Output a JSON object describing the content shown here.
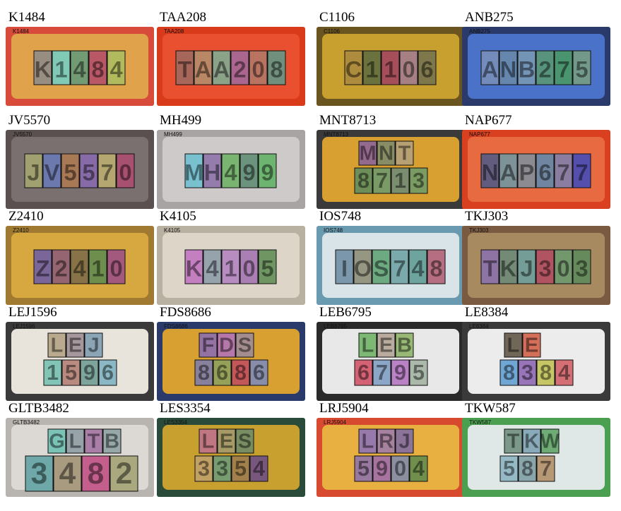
{
  "plates": [
    {
      "label": "K1484",
      "frame": "#d84a3a",
      "inner": "#e0a24a",
      "chars": [
        [
          "K",
          "#8a8a8a"
        ],
        [
          "1",
          "#6fd0c8"
        ],
        [
          "4",
          "#5f9a7a"
        ],
        [
          "8",
          "#b04a6a"
        ],
        [
          "4",
          "#a8c060"
        ]
      ],
      "layout": "single"
    },
    {
      "label": "TAA208",
      "frame": "#d93a1a",
      "inner": "#e85030",
      "chars": [
        [
          "T",
          "#9a6a60"
        ],
        [
          "A",
          "#b09070"
        ],
        [
          "A",
          "#7ab098"
        ],
        [
          "2",
          "#a06aa0"
        ],
        [
          "0",
          "#b07a6a"
        ],
        [
          "8",
          "#5a9a8a"
        ]
      ],
      "layout": "single"
    },
    {
      "label": "C1106",
      "frame": "#6a5420",
      "inner": "#c8a030",
      "chars": [
        [
          "C",
          "#a88a40"
        ],
        [
          "1",
          "#5a6a40"
        ],
        [
          "1",
          "#a04060"
        ],
        [
          "0",
          "#a07a90"
        ],
        [
          "6",
          "#707050"
        ]
      ],
      "layout": "single"
    },
    {
      "label": "ANB275",
      "frame": "#2a3a6a",
      "inner": "#4a72c8",
      "chars": [
        [
          "A",
          "#7a90b8"
        ],
        [
          "N",
          "#6a8aa8"
        ],
        [
          "B",
          "#7a9ab0"
        ],
        [
          "2",
          "#5a9a70"
        ],
        [
          "7",
          "#4a9a60"
        ],
        [
          "5",
          "#7aa080"
        ]
      ],
      "layout": "single"
    },
    {
      "label": "JV5570",
      "frame": "#5a5050",
      "inner": "#7a7070",
      "chars": [
        [
          "J",
          "#a8a870"
        ],
        [
          "V",
          "#6a7ab8"
        ],
        [
          "5",
          "#b07a50"
        ],
        [
          "5",
          "#8a6ab0"
        ],
        [
          "7",
          "#c0b070"
        ],
        [
          "0",
          "#b04a70"
        ]
      ],
      "layout": "single"
    },
    {
      "label": "MH499",
      "frame": "#a8a4a4",
      "inner": "#cfcaca",
      "chars": [
        [
          "M",
          "#6ac0d0"
        ],
        [
          "H",
          "#8a70a8"
        ],
        [
          "4",
          "#6ab060"
        ],
        [
          "9",
          "#5a8a70"
        ],
        [
          "9",
          "#5ab060"
        ]
      ],
      "layout": "single"
    },
    {
      "label": "MNT8713",
      "frame": "#3a3a3a",
      "inner": "#d8a030",
      "chars": [
        [
          "M",
          "#8a60a0"
        ],
        [
          "N",
          "#7a8a70"
        ],
        [
          "T",
          "#b0a080"
        ],
        [
          "8",
          "#5a8a60"
        ],
        [
          "7",
          "#6a9a70"
        ],
        [
          "1",
          "#6a8a7a"
        ],
        [
          "3",
          "#6a9a6a"
        ]
      ],
      "layout": "double3"
    },
    {
      "label": "NAP677",
      "frame": "#d84020",
      "inner": "#e86a40",
      "chars": [
        [
          "N",
          "#4a5a8a"
        ],
        [
          "A",
          "#6a9aa8"
        ],
        [
          "P",
          "#7a90a0"
        ],
        [
          "6",
          "#5a8ab0"
        ],
        [
          "7",
          "#7a80b0"
        ],
        [
          "7",
          "#3a4ac0"
        ]
      ],
      "layout": "single"
    },
    {
      "label": "Z2410",
      "frame": "#a07a30",
      "inner": "#d8a840",
      "chars": [
        [
          "Z",
          "#6a5aa8"
        ],
        [
          "2",
          "#8a5a7a"
        ],
        [
          "4",
          "#7a6a4a"
        ],
        [
          "1",
          "#5a8a50"
        ],
        [
          "0",
          "#9a4a8a"
        ]
      ],
      "layout": "single"
    },
    {
      "label": "K4105",
      "frame": "#b8b0a0",
      "inner": "#ddd6c8",
      "chars": [
        [
          "K",
          "#c070c0"
        ],
        [
          "4",
          "#8a9aa8"
        ],
        [
          "1",
          "#b080c0"
        ],
        [
          "0",
          "#a070b0"
        ],
        [
          "5",
          "#5a8a50"
        ]
      ],
      "layout": "single"
    },
    {
      "label": "IOS748",
      "frame": "#6a9ab0",
      "inner": "#d8e4e8",
      "chars": [
        [
          "I",
          "#6a8aa0"
        ],
        [
          "O",
          "#8a8a70"
        ],
        [
          "S",
          "#5aa070"
        ],
        [
          "7",
          "#6aa0a0"
        ],
        [
          "4",
          "#5a9a90"
        ],
        [
          "8",
          "#b05a70"
        ]
      ],
      "layout": "single"
    },
    {
      "label": "TKJ303",
      "frame": "#7a5a40",
      "inner": "#a88a60",
      "chars": [
        [
          "T",
          "#8a70b0"
        ],
        [
          "K",
          "#6a8a7a"
        ],
        [
          "J",
          "#6aa0a0"
        ],
        [
          "3",
          "#b04a60"
        ],
        [
          "0",
          "#6a9a70"
        ],
        [
          "3",
          "#5a8a5a"
        ]
      ],
      "layout": "single"
    },
    {
      "label": "LEJ1596",
      "frame": "#3a3a3a",
      "inner": "#e8e4dc",
      "chars": [
        [
          "L",
          "#b0a080"
        ],
        [
          "E",
          "#9a8a90"
        ],
        [
          "J",
          "#7a9ab0"
        ],
        [
          "1",
          "#70c0b0"
        ],
        [
          "5",
          "#b07a70"
        ],
        [
          "9",
          "#6a9a90"
        ],
        [
          "6",
          "#7ab0c0"
        ]
      ],
      "layout": "double3b"
    },
    {
      "label": "FDS8686",
      "frame": "#2a3a6a",
      "inner": "#d8a030",
      "chars": [
        [
          "F",
          "#8a6ab8"
        ],
        [
          "D",
          "#b070c0"
        ],
        [
          "S",
          "#9a8aa0"
        ],
        [
          "8",
          "#7a7ab0"
        ],
        [
          "6",
          "#8aa060"
        ],
        [
          "8",
          "#c04a60"
        ],
        [
          "6",
          "#7a8ac0"
        ]
      ],
      "layout": "double3b"
    },
    {
      "label": "LEB6795",
      "frame": "#2a2a2a",
      "inner": "#e8e8e8",
      "chars": [
        [
          "L",
          "#6ab060"
        ],
        [
          "E",
          "#b0a090"
        ],
        [
          "B",
          "#8ab060"
        ],
        [
          "6",
          "#d04a60"
        ],
        [
          "7",
          "#7a9ac0"
        ],
        [
          "9",
          "#b070c0"
        ],
        [
          "5",
          "#a0b0a0"
        ]
      ],
      "layout": "double3b"
    },
    {
      "label": "LE8384",
      "frame": "#3a3a3a",
      "inner": "#ececec",
      "chars": [
        [
          "L",
          "#5a5040"
        ],
        [
          "E",
          "#d05a40"
        ],
        [
          "8",
          "#5a9ad0"
        ],
        [
          "3",
          "#8a60b0"
        ],
        [
          "8",
          "#c0c050"
        ],
        [
          "4",
          "#d05a60"
        ]
      ],
      "layout": "double2"
    },
    {
      "label": "GLTB3482",
      "frame": "#b8b4b0",
      "inner": "#dcd8d4",
      "chars": [
        [
          "G",
          "#6ac0b0"
        ],
        [
          "L",
          "#8a9aa0"
        ],
        [
          "T",
          "#a070a0"
        ],
        [
          "B",
          "#8aa0a0"
        ],
        [
          "3",
          "#5aa0a0"
        ],
        [
          "4",
          "#a09070"
        ],
        [
          "8",
          "#c04a80"
        ],
        [
          "2",
          "#a0a070"
        ]
      ],
      "layout": "double4"
    },
    {
      "label": "LES3354",
      "frame": "#2a4a3a",
      "inner": "#c8a030",
      "chars": [
        [
          "L",
          "#c07090"
        ],
        [
          "E",
          "#a09a70"
        ],
        [
          "S",
          "#6a8a6a"
        ],
        [
          "3",
          "#c0a070"
        ],
        [
          "3",
          "#6a9a7a"
        ],
        [
          "5",
          "#9a7a50"
        ],
        [
          "4",
          "#6a4a8a"
        ]
      ],
      "layout": "double3b"
    },
    {
      "label": "LRJ5904",
      "frame": "#d84a30",
      "inner": "#e8b040",
      "chars": [
        [
          "L",
          "#8a70c0"
        ],
        [
          "R",
          "#9a7ab0"
        ],
        [
          "J",
          "#7a6aa8"
        ],
        [
          "5",
          "#8a70b0"
        ],
        [
          "9",
          "#9a6ab0"
        ],
        [
          "0",
          "#7a8ab0"
        ],
        [
          "4",
          "#5a8a50"
        ]
      ],
      "layout": "double3b"
    },
    {
      "label": "TKW587",
      "frame": "#4aa050",
      "inner": "#dfe8e6",
      "chars": [
        [
          "T",
          "#6a8a7a"
        ],
        [
          "K",
          "#7aa0b0"
        ],
        [
          "W",
          "#5aa060"
        ],
        [
          "5",
          "#8ab0c0"
        ],
        [
          "8",
          "#7a9aa0"
        ],
        [
          "7",
          "#b08a60"
        ]
      ],
      "layout": "double3b"
    }
  ]
}
